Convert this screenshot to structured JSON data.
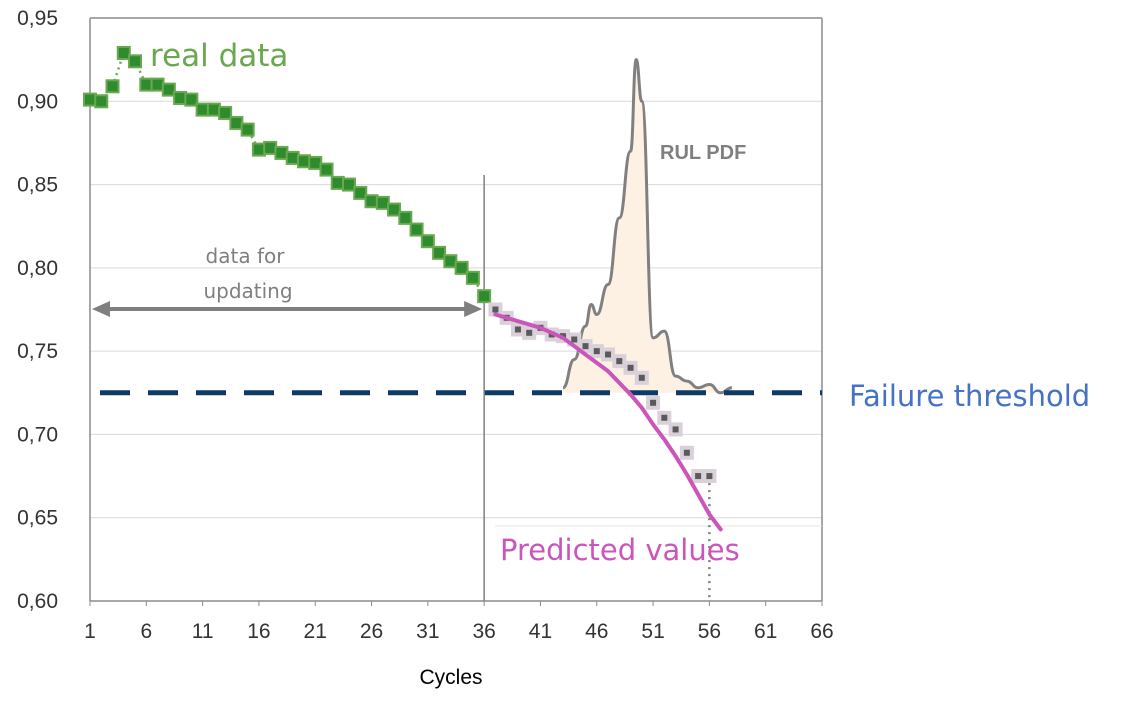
{
  "chart_data": {
    "type": "line",
    "title": "",
    "xlabel": "Cycles",
    "ylabel": "",
    "xlim": [
      1,
      66
    ],
    "ylim": [
      0.6,
      0.95
    ],
    "x_ticks": [
      "1",
      "6",
      "11",
      "16",
      "21",
      "26",
      "31",
      "36",
      "41",
      "46",
      "51",
      "56",
      "61",
      "66"
    ],
    "y_ticks": [
      "0,95",
      "0,90",
      "0,85",
      "0,80",
      "0,75",
      "0,70",
      "0,65",
      "0,60"
    ],
    "grid": true,
    "colors": {
      "real": "#2e8b2e",
      "real_edge": "#6aa84f",
      "predicted_curve": "#cc55bb",
      "predicted_points": "#5a5a5a",
      "threshold": "#0d3b66",
      "pdf_line": "#808080",
      "pdf_fill": "#fdf1e4"
    },
    "series": [
      {
        "name": "real data",
        "x": [
          1,
          2,
          3,
          4,
          5,
          6,
          7,
          8,
          9,
          10,
          11,
          12,
          13,
          14,
          15,
          16,
          17,
          18,
          19,
          20,
          21,
          22,
          23,
          24,
          25,
          26,
          27,
          28,
          29,
          30,
          31,
          32,
          33,
          34,
          35,
          36
        ],
        "y": [
          0.901,
          0.9,
          0.909,
          0.929,
          0.924,
          0.91,
          0.91,
          0.907,
          0.902,
          0.901,
          0.895,
          0.895,
          0.893,
          0.887,
          0.883,
          0.871,
          0.872,
          0.869,
          0.866,
          0.864,
          0.863,
          0.859,
          0.851,
          0.85,
          0.845,
          0.84,
          0.839,
          0.835,
          0.83,
          0.823,
          0.816,
          0.809,
          0.804,
          0.8,
          0.794,
          0.783
        ]
      },
      {
        "name": "Predicted values",
        "x": [
          37,
          38,
          39,
          40,
          41,
          42,
          43,
          44,
          45,
          46,
          47,
          48,
          49,
          50,
          51,
          52,
          53,
          54,
          55,
          56
        ],
        "y": [
          0.775,
          0.77,
          0.763,
          0.761,
          0.764,
          0.76,
          0.759,
          0.757,
          0.753,
          0.75,
          0.748,
          0.744,
          0.74,
          0.734,
          0.719,
          0.71,
          0.703,
          0.689,
          0.675,
          0.675
        ]
      }
    ],
    "predicted_curve": {
      "x": [
        37,
        39,
        41,
        43,
        45,
        47,
        49,
        50,
        51,
        52,
        53,
        54,
        55,
        56,
        57
      ],
      "y": [
        0.772,
        0.768,
        0.764,
        0.758,
        0.748,
        0.738,
        0.724,
        0.716,
        0.706,
        0.697,
        0.687,
        0.676,
        0.664,
        0.652,
        0.643
      ]
    },
    "rul_pdf": {
      "x": [
        43,
        44,
        45,
        45.5,
        46,
        47,
        48,
        49,
        49.5,
        50,
        51,
        52,
        53,
        54,
        55,
        56,
        57,
        58
      ],
      "y": [
        0.728,
        0.745,
        0.765,
        0.778,
        0.772,
        0.79,
        0.83,
        0.87,
        0.925,
        0.9,
        0.758,
        0.762,
        0.735,
        0.732,
        0.728,
        0.73,
        0.725,
        0.728
      ]
    },
    "threshold": {
      "y": 0.725
    },
    "prediction_start": {
      "x": 36
    },
    "rul_marker": {
      "x": 56
    },
    "annotations": {
      "real_data": "real data",
      "predicted_values": "Predicted values",
      "failure_threshold": "Failure threshold",
      "rul_pdf": "RUL PDF",
      "data_for_line1": "data for",
      "data_for_line2": "updating"
    }
  }
}
